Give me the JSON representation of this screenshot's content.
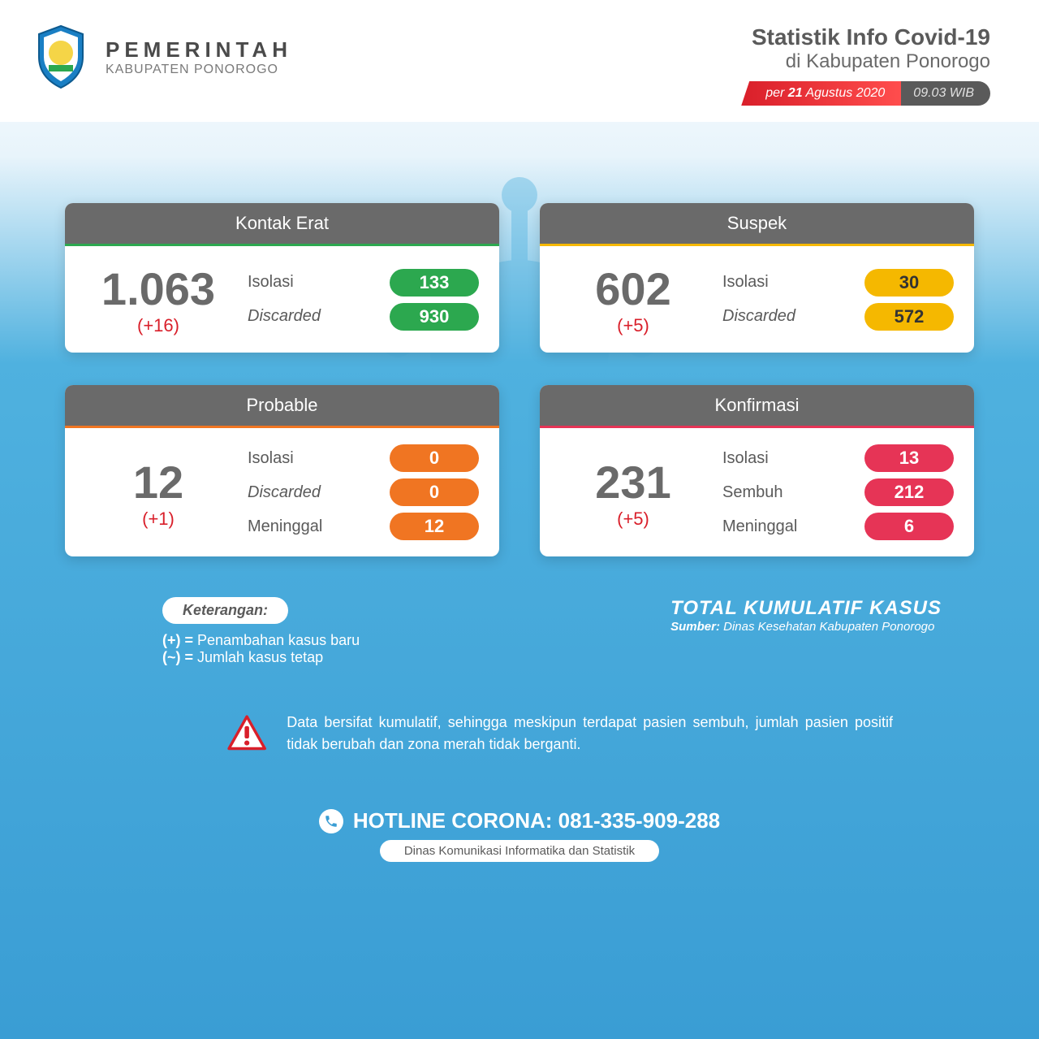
{
  "header": {
    "org_title": "PEMERINTAH",
    "org_subtitle": "KABUPATEN PONOROGO",
    "info_title": "Statistik Info Covid-19",
    "info_subtitle": "di Kabupaten Ponorogo",
    "date_prefix": "per ",
    "date_bold": "21",
    "date_rest": " Agustus 2020",
    "time": "09.03 WIB"
  },
  "colors": {
    "green": "#2ca84f",
    "yellow": "#f5b800",
    "yellow_text": "#333333",
    "orange": "#f07522",
    "red": "#e63456",
    "header_gray": "#6a6a6a"
  },
  "cards": [
    {
      "title": "Kontak Erat",
      "accent": "#2ca84f",
      "total": "1.063",
      "delta": "(+16)",
      "rows": [
        {
          "label": "Isolasi",
          "italic": false,
          "value": "133",
          "pill": "#2ca84f",
          "text": "#ffffff"
        },
        {
          "label": "Discarded",
          "italic": true,
          "value": "930",
          "pill": "#2ca84f",
          "text": "#ffffff"
        }
      ]
    },
    {
      "title": "Suspek",
      "accent": "#f5b800",
      "total": "602",
      "delta": "(+5)",
      "rows": [
        {
          "label": "Isolasi",
          "italic": false,
          "value": "30",
          "pill": "#f5b800",
          "text": "#333333"
        },
        {
          "label": "Discarded",
          "italic": true,
          "value": "572",
          "pill": "#f5b800",
          "text": "#333333"
        }
      ]
    },
    {
      "title": "Probable",
      "accent": "#f07522",
      "total": "12",
      "delta": "(+1)",
      "rows": [
        {
          "label": "Isolasi",
          "italic": false,
          "value": "0",
          "pill": "#f07522",
          "text": "#ffffff"
        },
        {
          "label": "Discarded",
          "italic": true,
          "value": "0",
          "pill": "#f07522",
          "text": "#ffffff"
        },
        {
          "label": "Meninggal",
          "italic": false,
          "value": "12",
          "pill": "#f07522",
          "text": "#ffffff"
        }
      ]
    },
    {
      "title": "Konfirmasi",
      "accent": "#e63456",
      "total": "231",
      "delta": "(+5)",
      "rows": [
        {
          "label": "Isolasi",
          "italic": false,
          "value": "13",
          "pill": "#e63456",
          "text": "#ffffff"
        },
        {
          "label": "Sembuh",
          "italic": false,
          "value": "212",
          "pill": "#e63456",
          "text": "#ffffff"
        },
        {
          "label": "Meninggal",
          "italic": false,
          "value": "6",
          "pill": "#e63456",
          "text": "#ffffff"
        }
      ]
    }
  ],
  "legend": {
    "title": "Keterangan:",
    "line1": "(+) = Penambahan kasus baru",
    "line2": "(~) = Jumlah kasus tetap",
    "total_title": "TOTAL KUMULATIF KASUS",
    "source_prefix": "Sumber: ",
    "source": "Dinas Kesehatan Kabupaten Ponorogo"
  },
  "note": "Data bersifat kumulatif, sehingga meskipun terdapat pasien sembuh, jumlah pasien positif tidak berubah dan zona merah tidak berganti.",
  "hotline": {
    "label": "HOTLINE CORONA: ",
    "number": "081-335-909-288",
    "dept": "Dinas Komunikasi Informatika dan Statistik"
  }
}
